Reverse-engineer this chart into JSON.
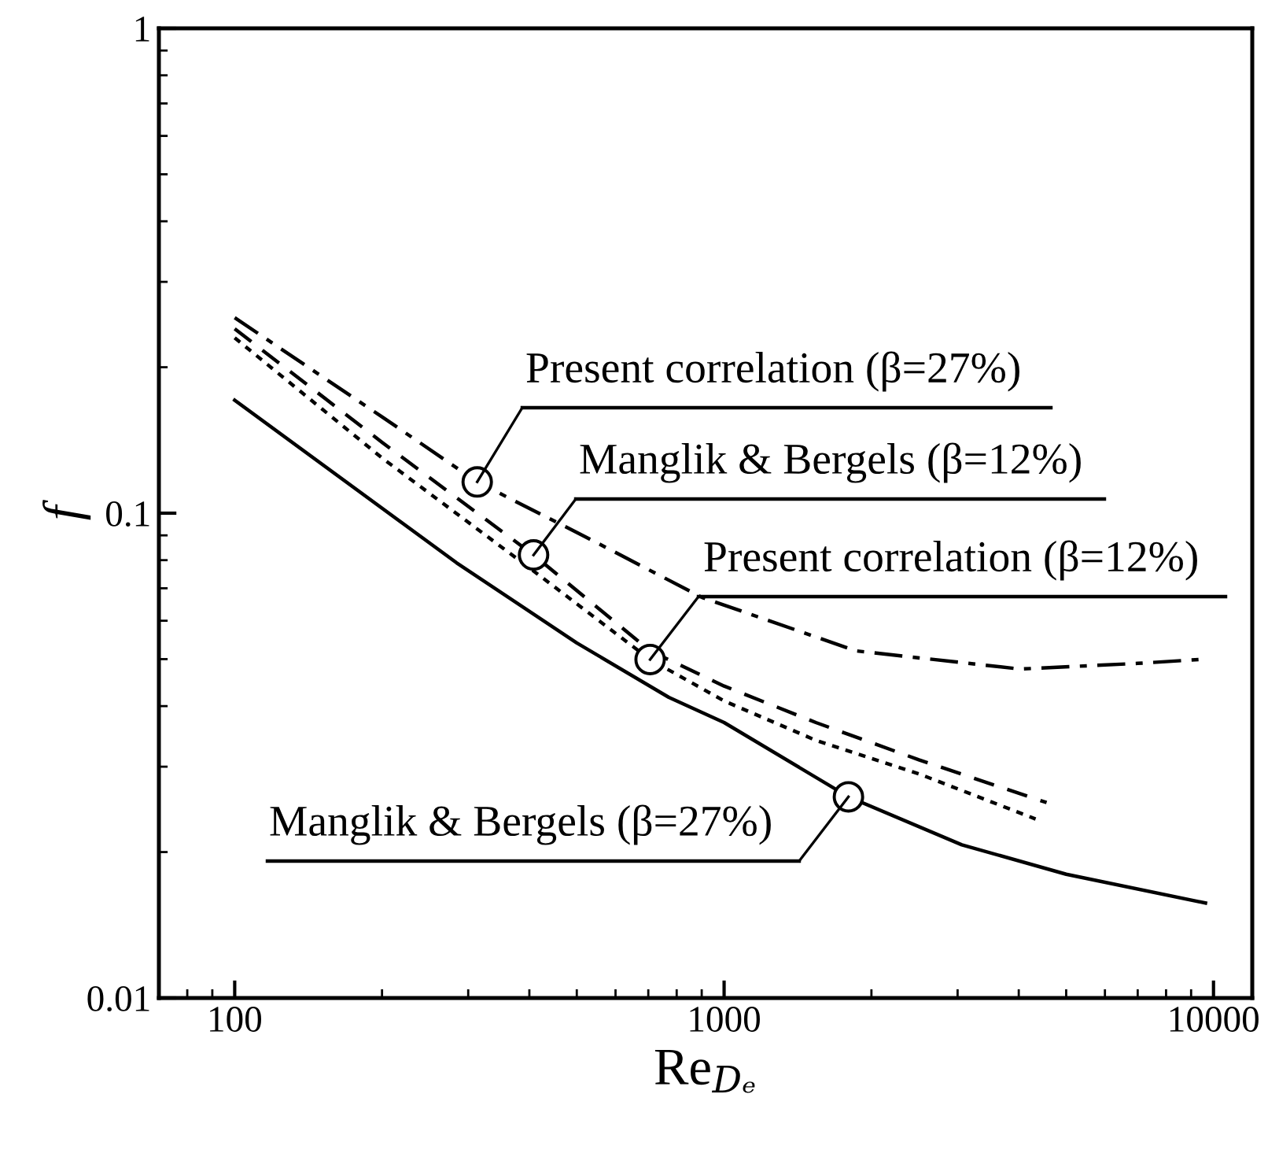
{
  "chart_data": {
    "type": "line",
    "xlabel": "Re$_{Dₑ}$",
    "ylabel": "f",
    "log": "xy",
    "grid": false,
    "marker": "none",
    "xlim": [
      70,
      12000
    ],
    "ylim": [
      0.01,
      1
    ],
    "xticks": [
      100,
      1000,
      10000
    ],
    "yticks": [
      0.01,
      0.1,
      1
    ],
    "series": [
      {
        "color": "#000000",
        "line_style": "solid",
        "x": [
          100,
          284,
          500,
          771,
          1000,
          1795,
          3060,
          5000,
          9630
        ],
        "values": [
          0.171,
          0.079,
          0.054,
          0.0417,
          0.037,
          0.026,
          0.0207,
          0.018,
          0.0157
        ]
      },
      {
        "color": "#000000",
        "line_style": "dashdot",
        "x": [
          100,
          200,
          313,
          525,
          902,
          1860,
          4020,
          7000,
          9630
        ],
        "values": [
          0.253,
          0.158,
          0.116,
          0.089,
          0.067,
          0.052,
          0.0477,
          0.049,
          0.05
        ]
      },
      {
        "color": "#000000",
        "line_style": "dashed",
        "x": [
          100,
          200,
          408,
          706,
          1000,
          1540,
          2500,
          4560
        ],
        "values": [
          0.24,
          0.14,
          0.082,
          0.052,
          0.044,
          0.037,
          0.031,
          0.0253
        ]
      },
      {
        "color": "#000000",
        "line_style": "dotted",
        "x": [
          100,
          200,
          408,
          706,
          1000,
          1540,
          2500,
          4330
        ],
        "values": [
          0.23,
          0.13,
          0.076,
          0.0499,
          0.041,
          0.034,
          0.029,
          0.0234
        ]
      }
    ],
    "annotations": [
      {
        "text": "Present correlation (β=27%)",
        "x": 313,
        "y": 0.116
      },
      {
        "text": "Manglik & Bergels (β=12%)",
        "x": 408,
        "y": 0.082
      },
      {
        "text": "Present correlation (β=12%)",
        "x": 706,
        "y": 0.0499
      },
      {
        "text": "Manglik & Bergels (β=27%)",
        "x": 1795,
        "y": 0.026
      }
    ]
  }
}
